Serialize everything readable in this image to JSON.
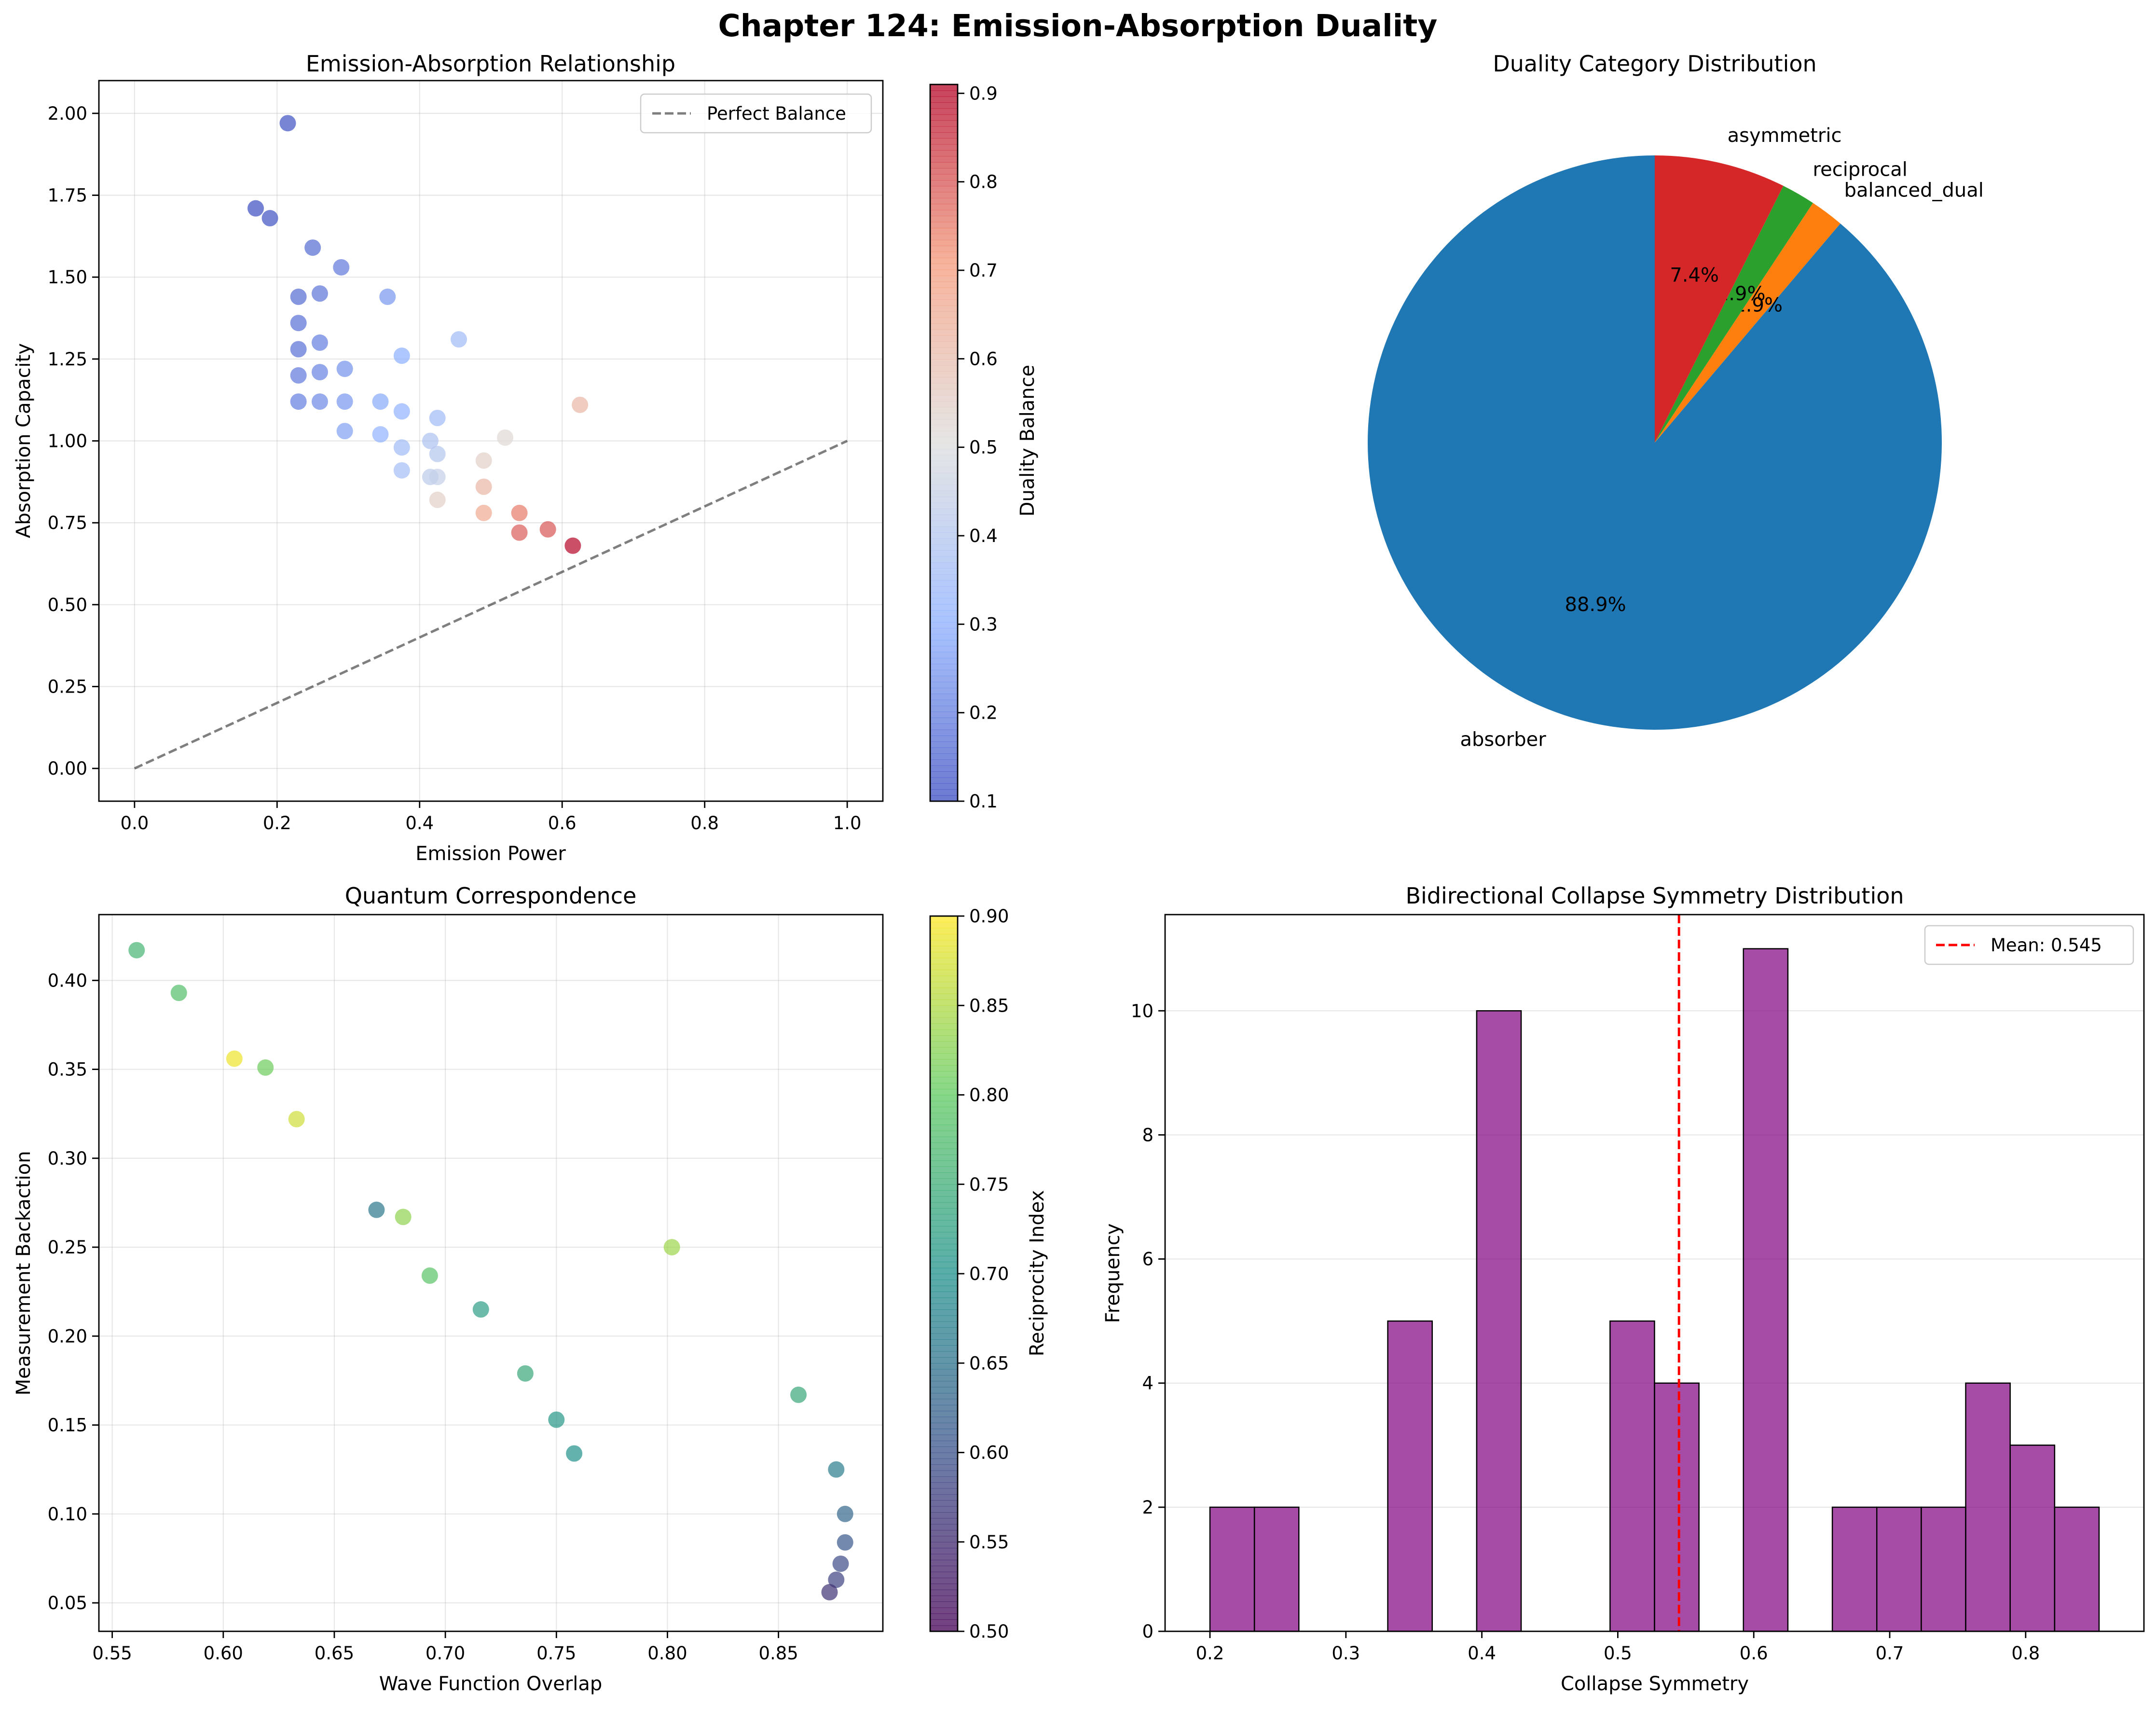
{
  "suptitle": "Chapter 124: Emission-Absorption Duality",
  "chart_data": [
    {
      "id": "emission_absorption",
      "type": "scatter",
      "title": "Emission-Absorption Relationship",
      "xlabel": "Emission Power",
      "ylabel": "Absorption Capacity",
      "xlim": [
        -0.05,
        1.05
      ],
      "ylim": [
        -0.1,
        2.1
      ],
      "xticks": [
        0.0,
        0.2,
        0.4,
        0.6,
        0.8,
        1.0
      ],
      "xtick_labels": [
        "0.0",
        "0.2",
        "0.4",
        "0.6",
        "0.8",
        "1.0"
      ],
      "yticks": [
        0.0,
        0.25,
        0.5,
        0.75,
        1.0,
        1.25,
        1.5,
        1.75,
        2.0
      ],
      "ytick_labels": [
        "0.00",
        "0.25",
        "0.50",
        "0.75",
        "1.00",
        "1.25",
        "1.50",
        "1.75",
        "2.00"
      ],
      "colorbar": {
        "label": "Duality Balance",
        "min": 0.1,
        "max": 0.91,
        "cmap": "coolwarm",
        "ticks": [
          0.1,
          0.2,
          0.3,
          0.4,
          0.5,
          0.6,
          0.7,
          0.8,
          0.9
        ],
        "tick_labels": [
          "0.1",
          "0.2",
          "0.3",
          "0.4",
          "0.5",
          "0.6",
          "0.7",
          "0.8",
          "0.9"
        ]
      },
      "reference_line": {
        "label": "Perfect Balance",
        "x": [
          0,
          1
        ],
        "y": [
          0,
          1
        ]
      },
      "legend_position": "top-right",
      "points": [
        {
          "x": 0.215,
          "y": 1.97,
          "c": 0.11
        },
        {
          "x": 0.17,
          "y": 1.71,
          "c": 0.1
        },
        {
          "x": 0.19,
          "y": 1.68,
          "c": 0.11
        },
        {
          "x": 0.25,
          "y": 1.59,
          "c": 0.16
        },
        {
          "x": 0.29,
          "y": 1.53,
          "c": 0.19
        },
        {
          "x": 0.23,
          "y": 1.44,
          "c": 0.16
        },
        {
          "x": 0.26,
          "y": 1.45,
          "c": 0.18
        },
        {
          "x": 0.355,
          "y": 1.44,
          "c": 0.25
        },
        {
          "x": 0.23,
          "y": 1.36,
          "c": 0.17
        },
        {
          "x": 0.455,
          "y": 1.31,
          "c": 0.35
        },
        {
          "x": 0.23,
          "y": 1.28,
          "c": 0.17
        },
        {
          "x": 0.26,
          "y": 1.3,
          "c": 0.2
        },
        {
          "x": 0.375,
          "y": 1.26,
          "c": 0.3
        },
        {
          "x": 0.23,
          "y": 1.2,
          "c": 0.19
        },
        {
          "x": 0.26,
          "y": 1.21,
          "c": 0.21
        },
        {
          "x": 0.295,
          "y": 1.22,
          "c": 0.24
        },
        {
          "x": 0.23,
          "y": 1.12,
          "c": 0.2
        },
        {
          "x": 0.26,
          "y": 1.12,
          "c": 0.22
        },
        {
          "x": 0.295,
          "y": 1.12,
          "c": 0.25
        },
        {
          "x": 0.345,
          "y": 1.12,
          "c": 0.29
        },
        {
          "x": 0.375,
          "y": 1.09,
          "c": 0.31
        },
        {
          "x": 0.425,
          "y": 1.07,
          "c": 0.35
        },
        {
          "x": 0.625,
          "y": 1.11,
          "c": 0.62
        },
        {
          "x": 0.295,
          "y": 1.03,
          "c": 0.27
        },
        {
          "x": 0.345,
          "y": 1.02,
          "c": 0.31
        },
        {
          "x": 0.52,
          "y": 1.01,
          "c": 0.52
        },
        {
          "x": 0.415,
          "y": 1.0,
          "c": 0.38
        },
        {
          "x": 0.375,
          "y": 0.98,
          "c": 0.35
        },
        {
          "x": 0.425,
          "y": 0.96,
          "c": 0.4
        },
        {
          "x": 0.49,
          "y": 0.94,
          "c": 0.55
        },
        {
          "x": 0.375,
          "y": 0.91,
          "c": 0.36
        },
        {
          "x": 0.415,
          "y": 0.89,
          "c": 0.42
        },
        {
          "x": 0.425,
          "y": 0.89,
          "c": 0.44
        },
        {
          "x": 0.49,
          "y": 0.86,
          "c": 0.62
        },
        {
          "x": 0.425,
          "y": 0.82,
          "c": 0.55
        },
        {
          "x": 0.49,
          "y": 0.78,
          "c": 0.66
        },
        {
          "x": 0.54,
          "y": 0.78,
          "c": 0.75
        },
        {
          "x": 0.54,
          "y": 0.72,
          "c": 0.79
        },
        {
          "x": 0.58,
          "y": 0.73,
          "c": 0.8
        },
        {
          "x": 0.615,
          "y": 0.68,
          "c": 0.91
        }
      ]
    },
    {
      "id": "duality_categories",
      "type": "pie",
      "title": "Duality Category Distribution",
      "slices": [
        {
          "label": "absorber",
          "value": 88.9,
          "pct_label": "88.9%",
          "color": "#1f77b4"
        },
        {
          "label": "balanced_dual",
          "value": 1.9,
          "pct_label": "1.9%",
          "color": "#ff7f0e"
        },
        {
          "label": "reciprocal",
          "value": 1.9,
          "pct_label": "1.9%",
          "color": "#2ca02c"
        },
        {
          "label": "asymmetric",
          "value": 7.4,
          "pct_label": "7.4%",
          "color": "#d62728"
        }
      ]
    },
    {
      "id": "quantum_correspondence",
      "type": "scatter",
      "title": "Quantum Correspondence",
      "xlabel": "Wave Function Overlap",
      "ylabel": "Measurement Backaction",
      "xlim": [
        0.544,
        0.897
      ],
      "ylim": [
        0.034,
        0.437
      ],
      "xticks": [
        0.55,
        0.6,
        0.65,
        0.7,
        0.75,
        0.8,
        0.85
      ],
      "xtick_labels": [
        "0.55",
        "0.60",
        "0.65",
        "0.70",
        "0.75",
        "0.80",
        "0.85"
      ],
      "yticks": [
        0.05,
        0.1,
        0.15,
        0.2,
        0.25,
        0.3,
        0.35,
        0.4
      ],
      "ytick_labels": [
        "0.05",
        "0.10",
        "0.15",
        "0.20",
        "0.25",
        "0.30",
        "0.35",
        "0.40"
      ],
      "colorbar": {
        "label": "Reciprocity Index",
        "min": 0.5,
        "max": 0.9,
        "cmap": "viridis",
        "ticks": [
          0.5,
          0.55,
          0.6,
          0.65,
          0.7,
          0.75,
          0.8,
          0.85,
          0.9
        ],
        "tick_labels": [
          "0.50",
          "0.55",
          "0.60",
          "0.65",
          "0.70",
          "0.75",
          "0.80",
          "0.85",
          "0.90"
        ]
      },
      "points": [
        {
          "x": 0.561,
          "y": 0.417,
          "c": 0.76
        },
        {
          "x": 0.58,
          "y": 0.393,
          "c": 0.78
        },
        {
          "x": 0.605,
          "y": 0.356,
          "c": 0.89
        },
        {
          "x": 0.619,
          "y": 0.351,
          "c": 0.81
        },
        {
          "x": 0.633,
          "y": 0.322,
          "c": 0.87
        },
        {
          "x": 0.669,
          "y": 0.271,
          "c": 0.66
        },
        {
          "x": 0.681,
          "y": 0.267,
          "c": 0.83
        },
        {
          "x": 0.693,
          "y": 0.234,
          "c": 0.79
        },
        {
          "x": 0.716,
          "y": 0.215,
          "c": 0.72
        },
        {
          "x": 0.736,
          "y": 0.179,
          "c": 0.74
        },
        {
          "x": 0.75,
          "y": 0.153,
          "c": 0.71
        },
        {
          "x": 0.758,
          "y": 0.134,
          "c": 0.7
        },
        {
          "x": 0.802,
          "y": 0.25,
          "c": 0.84
        },
        {
          "x": 0.859,
          "y": 0.167,
          "c": 0.74
        },
        {
          "x": 0.876,
          "y": 0.125,
          "c": 0.67
        },
        {
          "x": 0.88,
          "y": 0.1,
          "c": 0.63
        },
        {
          "x": 0.88,
          "y": 0.084,
          "c": 0.61
        },
        {
          "x": 0.878,
          "y": 0.072,
          "c": 0.59
        },
        {
          "x": 0.876,
          "y": 0.063,
          "c": 0.58
        },
        {
          "x": 0.873,
          "y": 0.056,
          "c": 0.56
        }
      ]
    },
    {
      "id": "collapse_symmetry",
      "type": "bar",
      "subtype": "histogram",
      "title": "Bidirectional Collapse Symmetry Distribution",
      "xlabel": "Collapse Symmetry",
      "ylabel": "Frequency",
      "xlim": [
        0.167,
        0.887
      ],
      "ylim": [
        0,
        11.55
      ],
      "xticks": [
        0.2,
        0.3,
        0.4,
        0.5,
        0.6,
        0.7,
        0.8
      ],
      "xtick_labels": [
        "0.2",
        "0.3",
        "0.4",
        "0.5",
        "0.6",
        "0.7",
        "0.8"
      ],
      "yticks": [
        0,
        2,
        4,
        6,
        8,
        10
      ],
      "ytick_labels": [
        "0",
        "2",
        "4",
        "6",
        "8",
        "10"
      ],
      "bin_start": 0.2,
      "bin_width": 0.0327,
      "counts": [
        2,
        2,
        0,
        0,
        5,
        0,
        10,
        0,
        0,
        5,
        4,
        0,
        11,
        0,
        2,
        2,
        2,
        4,
        3,
        2
      ],
      "bar_color": "#800080",
      "mean": 0.545,
      "mean_label": "Mean: 0.545",
      "legend_position": "top-right"
    }
  ]
}
